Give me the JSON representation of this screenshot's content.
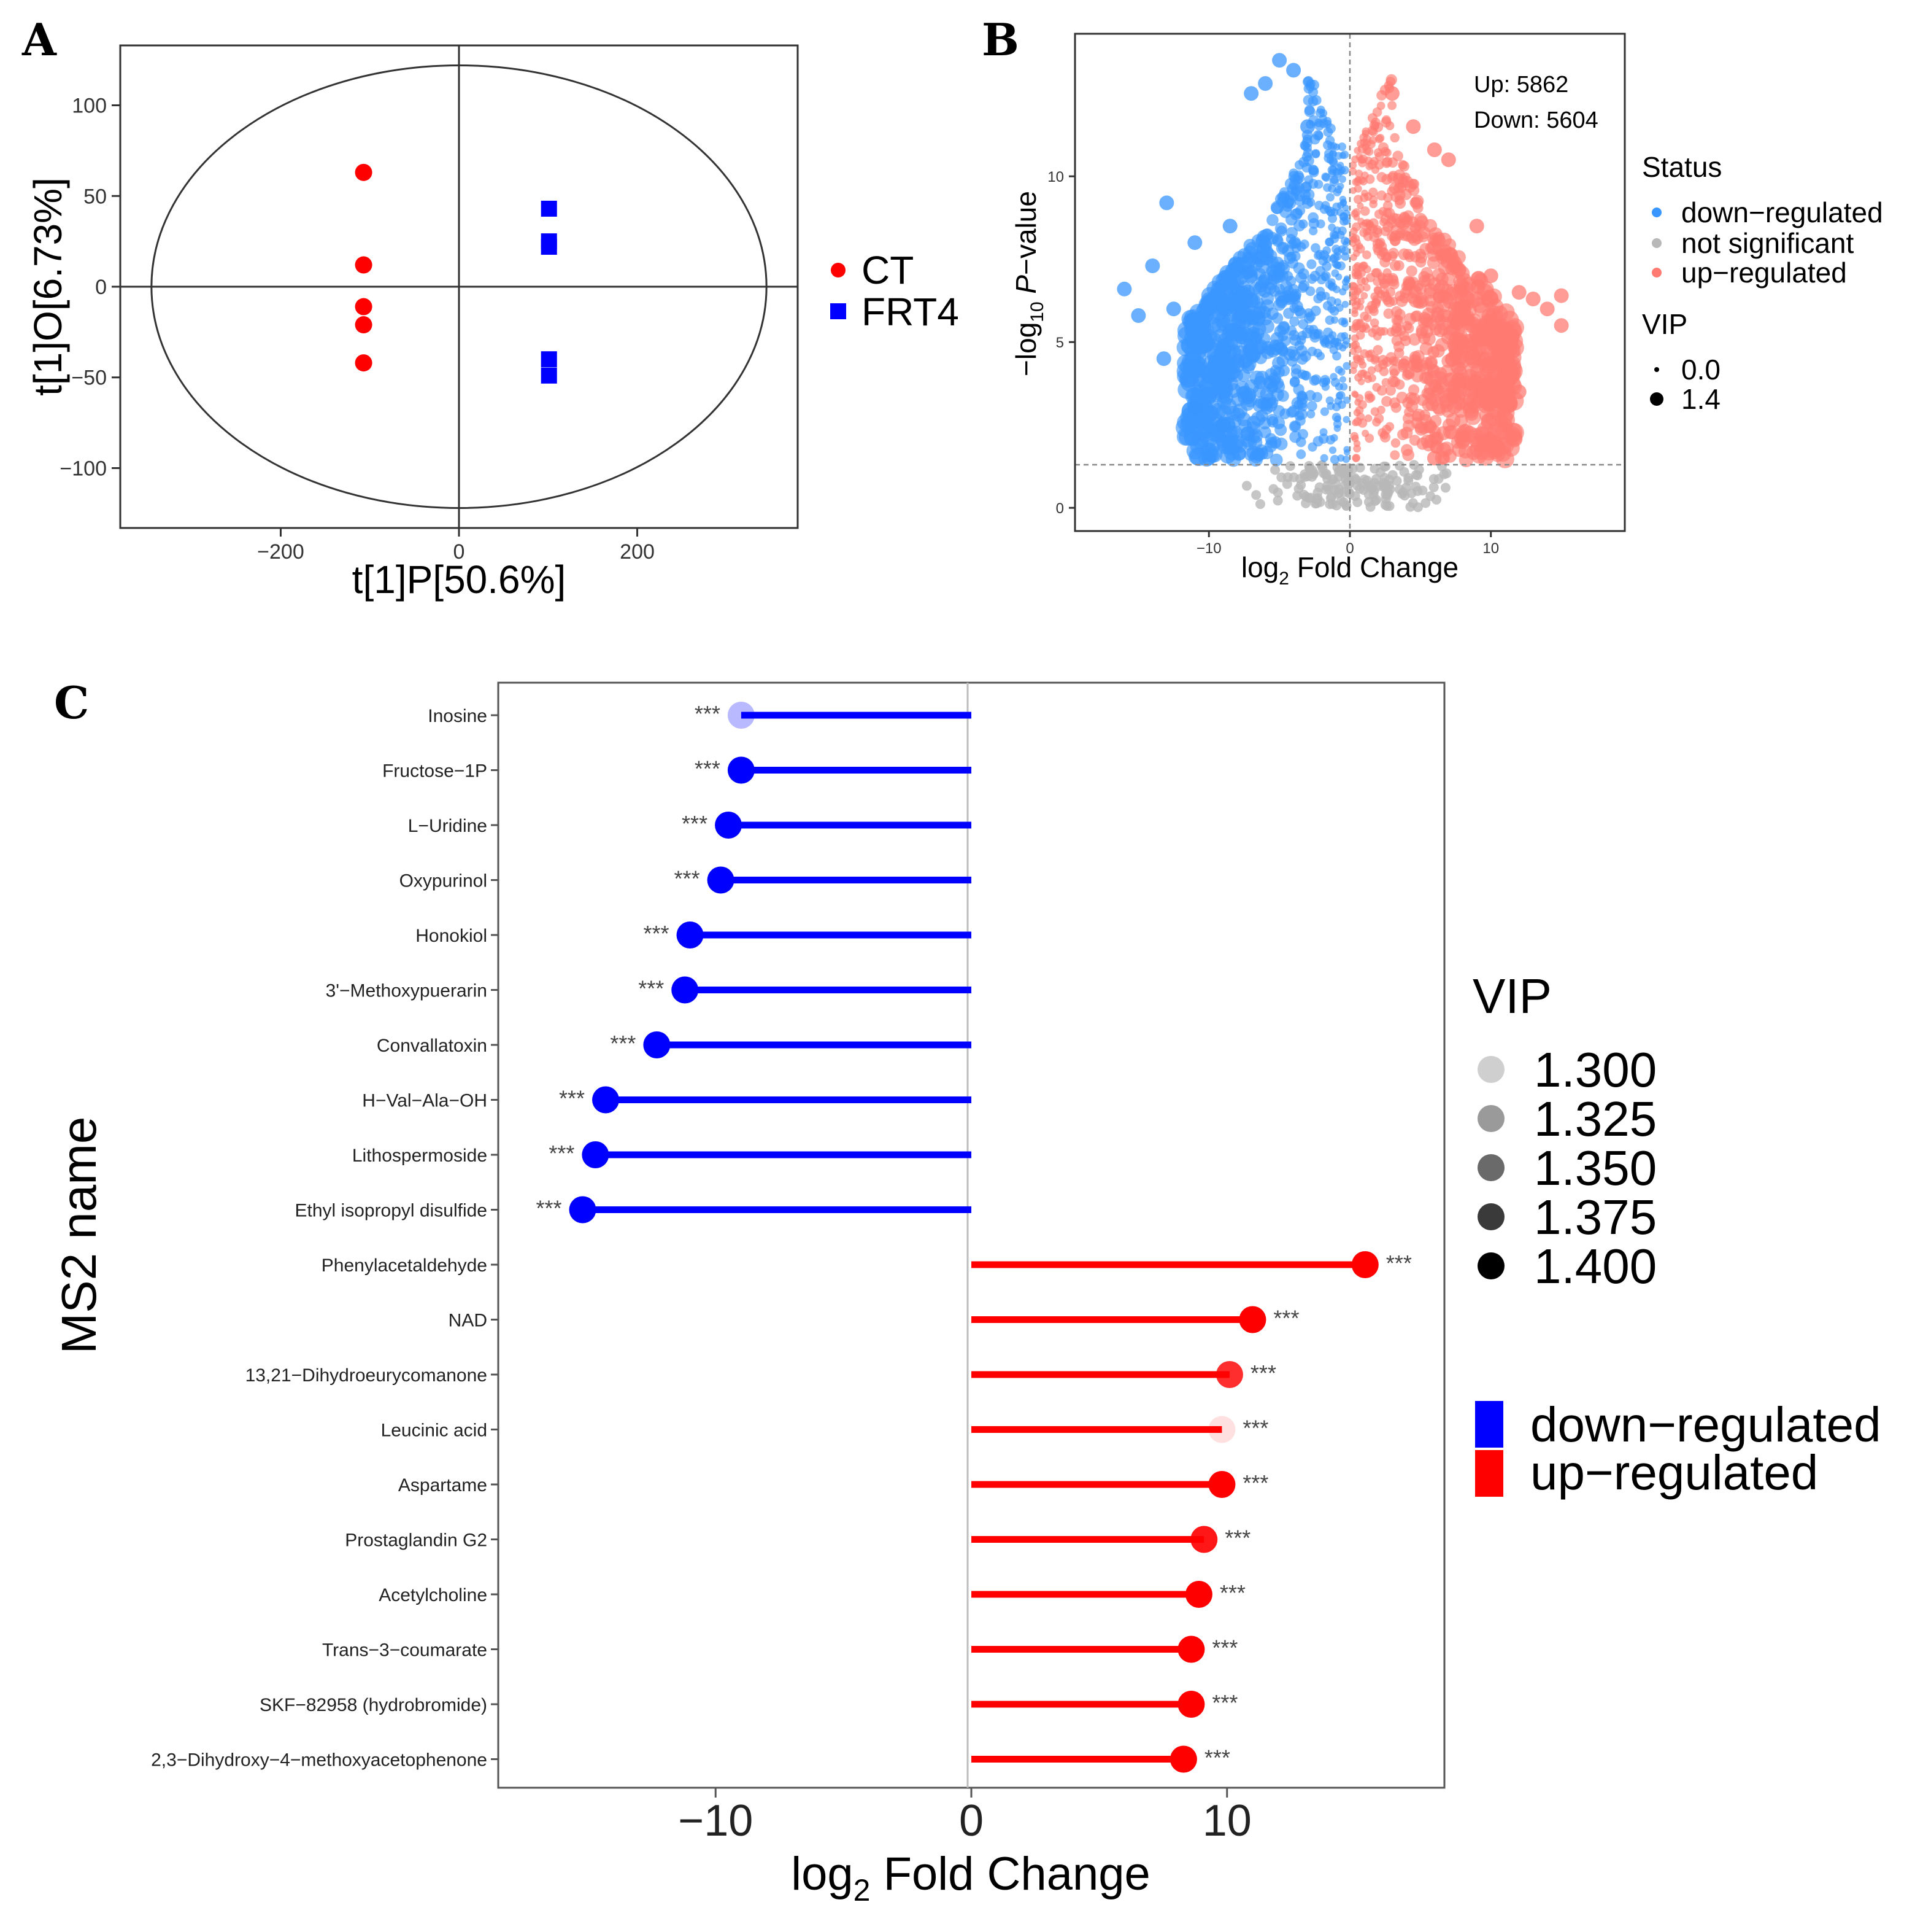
{
  "panel_letters": {
    "a": "A",
    "b": "B",
    "c": "C"
  },
  "colors": {
    "ct": "#ff0000",
    "frt4": "#0000ff",
    "down": "#3a96ff",
    "up": "#ff7b72",
    "ns": "#b8b8b8",
    "bar_down": "#0000ff",
    "bar_up": "#ff0000"
  },
  "chart_data": [
    {
      "id": "A",
      "type": "scatter",
      "title": "",
      "xlabel": "t[1]P[50.6%]",
      "ylabel": "t[1]O[6.73%]",
      "xlim": [
        -380,
        380
      ],
      "ylim": [
        -133,
        133
      ],
      "xticks": [
        -200,
        0,
        200
      ],
      "yticks": [
        -100,
        -50,
        0,
        50,
        100
      ],
      "xtick_labels": [
        "−200",
        "0",
        "200"
      ],
      "ytick_labels": [
        "−100",
        "−50",
        "0",
        "50",
        "100"
      ],
      "ellipse": {
        "rx": 345,
        "ry": 122
      },
      "grid": false,
      "legend_position": "right",
      "series": [
        {
          "name": "CT",
          "marker": "circle",
          "points": [
            [
              -107,
              63
            ],
            [
              -107,
              12
            ],
            [
              -107,
              -11
            ],
            [
              -107,
              -21
            ],
            [
              -107,
              -42
            ]
          ]
        },
        {
          "name": "FRT4",
          "marker": "square",
          "points": [
            [
              101,
              43
            ],
            [
              101,
              25
            ],
            [
              101,
              22
            ],
            [
              101,
              -40
            ],
            [
              101,
              -49
            ]
          ]
        }
      ]
    },
    {
      "id": "B",
      "type": "scatter",
      "title": "",
      "xlabel_parts": [
        "log",
        "2",
        " Fold Change"
      ],
      "ylabel_parts": [
        "−log",
        "10",
        " ",
        "P",
        "−value"
      ],
      "xlim": [
        -19.5,
        19.5
      ],
      "ylim": [
        -0.7,
        14.3
      ],
      "xticks": [
        -10,
        0,
        10
      ],
      "yticks": [
        0,
        5,
        10
      ],
      "xtick_labels": [
        "−10",
        "0",
        "10"
      ],
      "ytick_labels": [
        "0",
        "5",
        "10"
      ],
      "threshold_y": 1.3,
      "threshold_x": 0,
      "annotations": [
        "Up: 5862",
        "Down: 5604"
      ],
      "legend": {
        "status_title": "Status",
        "status_items": [
          "down−regulated",
          "not significant",
          "up−regulated"
        ],
        "vip_title": "VIP",
        "vip_items": [
          "0.0",
          "1.4"
        ]
      },
      "counts": {
        "up": 5862,
        "down": 5604
      }
    },
    {
      "id": "C",
      "type": "bar",
      "style": "lollipop-horizontal",
      "xlabel_parts": [
        "log",
        "2",
        " Fold Change"
      ],
      "ylabel": "MS2 name",
      "xlim": [
        -18.5,
        18.5
      ],
      "xticks": [
        -10,
        0,
        10
      ],
      "xtick_labels": [
        "−10",
        "0",
        "10"
      ],
      "significance": "***",
      "categories": [
        "Inosine",
        "Fructose−1P",
        "L−Uridine",
        "Oxypurinol",
        "Honokiol",
        "3'−Methoxypuerarin",
        "Convallatoxin",
        "H−Val−Ala−OH",
        "Lithospermoside",
        "Ethyl isopropyl disulfide",
        "Phenylacetaldehyde",
        "NAD",
        "13,21−Dihydroeurycomanone",
        "Leucinic acid",
        "Aspartame",
        "Prostaglandin G2",
        "Acetylcholine",
        "Trans−3−coumarate",
        "SKF−82958 (hydrobromide)",
        "2,3−Dihydroxy−4−methoxyacetophenone"
      ],
      "values": [
        -9.0,
        -9.0,
        -9.5,
        -9.8,
        -11.0,
        -11.2,
        -12.3,
        -14.3,
        -14.7,
        -15.2,
        15.4,
        11.0,
        10.1,
        9.8,
        9.8,
        9.1,
        8.9,
        8.6,
        8.6,
        8.3
      ],
      "vip": [
        1.32,
        1.4,
        1.4,
        1.4,
        1.4,
        1.4,
        1.4,
        1.4,
        1.4,
        1.4,
        1.4,
        1.4,
        1.38,
        1.3,
        1.4,
        1.39,
        1.4,
        1.4,
        1.4,
        1.4
      ],
      "legend": {
        "vip_title": "VIP",
        "vip_items": [
          "1.300",
          "1.325",
          "1.350",
          "1.375",
          "1.400"
        ],
        "direction_items": [
          "down−regulated",
          "up−regulated"
        ]
      }
    }
  ]
}
